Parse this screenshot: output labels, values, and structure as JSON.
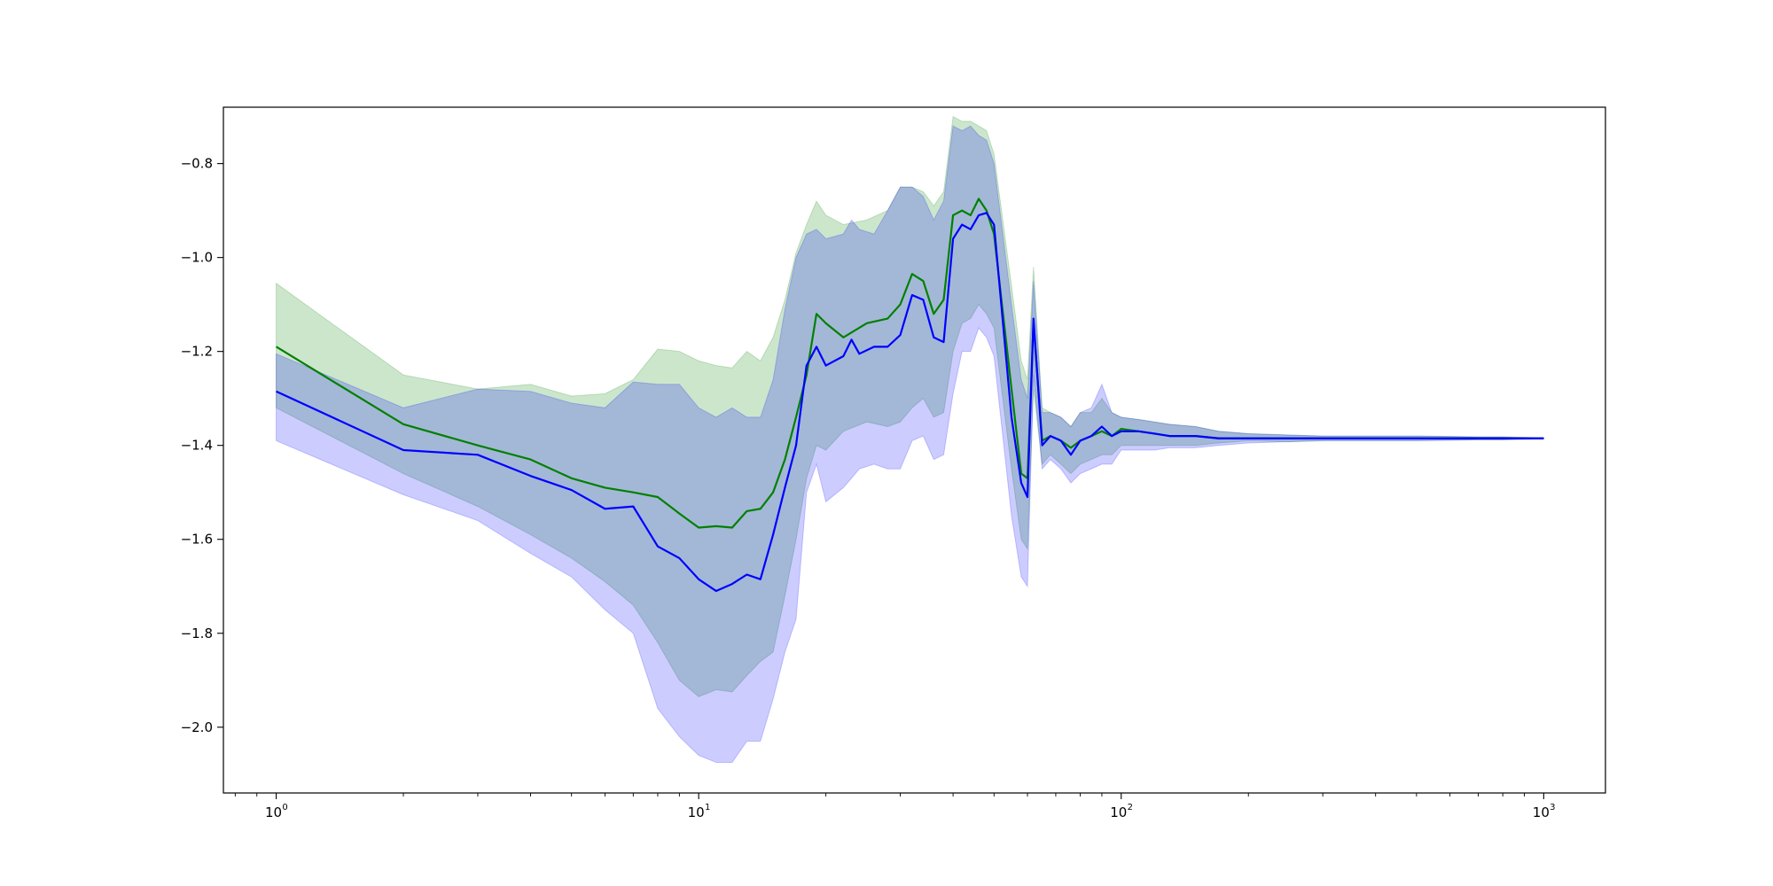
{
  "chart_data": {
    "type": "line",
    "title": "",
    "xlabel": "",
    "ylabel": "",
    "x_scale": "log",
    "xlim": [
      0.75,
      1400
    ],
    "ylim": [
      -2.14,
      -0.68
    ],
    "grid": false,
    "x_ticks": [
      {
        "base": "10",
        "exp": "0",
        "value": 1
      },
      {
        "base": "10",
        "exp": "1",
        "value": 10
      },
      {
        "base": "10",
        "exp": "2",
        "value": 100
      },
      {
        "base": "10",
        "exp": "3",
        "value": 1000
      }
    ],
    "y_ticks": [
      {
        "label": "−2.0",
        "value": -2.0
      },
      {
        "label": "−1.8",
        "value": -1.8
      },
      {
        "label": "−1.6",
        "value": -1.6
      },
      {
        "label": "−1.4",
        "value": -1.4
      },
      {
        "label": "−1.2",
        "value": -1.2
      },
      {
        "label": "−1.0",
        "value": -1.0
      },
      {
        "label": "−0.8",
        "value": -0.8
      }
    ],
    "series": [
      {
        "color": "#008000",
        "band_color": "#008000",
        "band_opacity": 0.2,
        "x": [
          1,
          2,
          3,
          4,
          5,
          6,
          7,
          8,
          9,
          10,
          11,
          12,
          13,
          14,
          15,
          16,
          17,
          18,
          19,
          20,
          22,
          25,
          28,
          30,
          32,
          34,
          36,
          38,
          40,
          42,
          44,
          46,
          48,
          50,
          55,
          58,
          60,
          62,
          65,
          68,
          72,
          76,
          80,
          85,
          90,
          95,
          100,
          110,
          120,
          130,
          150,
          170,
          200,
          250,
          300,
          400,
          500,
          600,
          700,
          800,
          900,
          1000
        ],
        "y": [
          -1.19,
          -1.355,
          -1.4,
          -1.43,
          -1.47,
          -1.49,
          -1.5,
          -1.51,
          -1.545,
          -1.575,
          -1.572,
          -1.575,
          -1.54,
          -1.535,
          -1.5,
          -1.43,
          -1.34,
          -1.25,
          -1.12,
          -1.14,
          -1.17,
          -1.14,
          -1.13,
          -1.1,
          -1.035,
          -1.05,
          -1.12,
          -1.09,
          -0.91,
          -0.9,
          -0.91,
          -0.875,
          -0.9,
          -0.95,
          -1.28,
          -1.46,
          -1.47,
          -1.14,
          -1.39,
          -1.38,
          -1.39,
          -1.405,
          -1.39,
          -1.38,
          -1.37,
          -1.38,
          -1.365,
          -1.37,
          -1.375,
          -1.38,
          -1.38,
          -1.385,
          -1.385,
          -1.385,
          -1.385,
          -1.385,
          -1.385,
          -1.385,
          -1.385,
          -1.385,
          -1.385,
          -1.385
        ],
        "upper": [
          -1.055,
          -1.25,
          -1.28,
          -1.27,
          -1.295,
          -1.29,
          -1.26,
          -1.195,
          -1.2,
          -1.22,
          -1.23,
          -1.235,
          -1.2,
          -1.22,
          -1.17,
          -1.09,
          -0.99,
          -0.93,
          -0.88,
          -0.91,
          -0.93,
          -0.92,
          -0.9,
          -0.85,
          -0.85,
          -0.86,
          -0.89,
          -0.86,
          -0.7,
          -0.71,
          -0.71,
          -0.72,
          -0.73,
          -0.78,
          -1.06,
          -1.22,
          -1.26,
          -1.02,
          -1.32,
          -1.33,
          -1.34,
          -1.36,
          -1.33,
          -1.33,
          -1.3,
          -1.33,
          -1.34,
          -1.345,
          -1.35,
          -1.355,
          -1.36,
          -1.37,
          -1.375,
          -1.378,
          -1.38,
          -1.38,
          -1.38,
          -1.381,
          -1.382,
          -1.382,
          -1.383,
          -1.384
        ],
        "lower": [
          -1.32,
          -1.46,
          -1.53,
          -1.59,
          -1.64,
          -1.69,
          -1.74,
          -1.82,
          -1.9,
          -1.935,
          -1.92,
          -1.925,
          -1.89,
          -1.86,
          -1.84,
          -1.72,
          -1.6,
          -1.47,
          -1.4,
          -1.41,
          -1.37,
          -1.35,
          -1.36,
          -1.35,
          -1.32,
          -1.3,
          -1.34,
          -1.33,
          -1.2,
          -1.14,
          -1.13,
          -1.1,
          -1.12,
          -1.15,
          -1.45,
          -1.6,
          -1.62,
          -1.28,
          -1.44,
          -1.42,
          -1.44,
          -1.46,
          -1.44,
          -1.43,
          -1.42,
          -1.42,
          -1.4,
          -1.4,
          -1.4,
          -1.4,
          -1.4,
          -1.395,
          -1.39,
          -1.392,
          -1.39,
          -1.39,
          -1.39,
          -1.389,
          -1.388,
          -1.388,
          -1.387,
          -1.386
        ]
      },
      {
        "color": "#0000ff",
        "band_color": "#0000ff",
        "band_opacity": 0.2,
        "x": [
          1,
          2,
          3,
          4,
          5,
          6,
          7,
          8,
          9,
          10,
          11,
          12,
          13,
          14,
          15,
          16,
          17,
          18,
          19,
          20,
          22,
          23,
          24,
          26,
          28,
          30,
          32,
          34,
          36,
          38,
          40,
          42,
          44,
          46,
          48,
          50,
          55,
          58,
          60,
          62,
          65,
          68,
          72,
          76,
          80,
          85,
          90,
          95,
          100,
          110,
          120,
          130,
          150,
          170,
          200,
          250,
          300,
          400,
          500,
          600,
          700,
          800,
          900,
          1000
        ],
        "y": [
          -1.285,
          -1.41,
          -1.42,
          -1.465,
          -1.495,
          -1.535,
          -1.53,
          -1.615,
          -1.64,
          -1.685,
          -1.71,
          -1.695,
          -1.675,
          -1.685,
          -1.59,
          -1.49,
          -1.4,
          -1.23,
          -1.19,
          -1.23,
          -1.21,
          -1.175,
          -1.205,
          -1.19,
          -1.19,
          -1.165,
          -1.08,
          -1.09,
          -1.17,
          -1.18,
          -0.96,
          -0.93,
          -0.94,
          -0.91,
          -0.905,
          -0.93,
          -1.34,
          -1.48,
          -1.51,
          -1.13,
          -1.4,
          -1.38,
          -1.39,
          -1.42,
          -1.39,
          -1.38,
          -1.36,
          -1.38,
          -1.37,
          -1.37,
          -1.375,
          -1.38,
          -1.38,
          -1.385,
          -1.385,
          -1.385,
          -1.385,
          -1.385,
          -1.385,
          -1.385,
          -1.385,
          -1.385,
          -1.385,
          -1.385
        ],
        "upper": [
          -1.205,
          -1.32,
          -1.28,
          -1.285,
          -1.31,
          -1.32,
          -1.265,
          -1.27,
          -1.27,
          -1.32,
          -1.34,
          -1.32,
          -1.34,
          -1.34,
          -1.26,
          -1.11,
          -1.0,
          -0.95,
          -0.94,
          -0.96,
          -0.95,
          -0.92,
          -0.94,
          -0.95,
          -0.9,
          -0.85,
          -0.85,
          -0.87,
          -0.92,
          -0.88,
          -0.72,
          -0.73,
          -0.72,
          -0.74,
          -0.75,
          -0.8,
          -1.1,
          -1.26,
          -1.3,
          -1.05,
          -1.33,
          -1.33,
          -1.34,
          -1.36,
          -1.33,
          -1.32,
          -1.27,
          -1.33,
          -1.34,
          -1.345,
          -1.35,
          -1.355,
          -1.36,
          -1.37,
          -1.375,
          -1.378,
          -1.38,
          -1.38,
          -1.38,
          -1.381,
          -1.382,
          -1.382,
          -1.383,
          -1.384
        ],
        "lower": [
          -1.39,
          -1.505,
          -1.56,
          -1.63,
          -1.68,
          -1.75,
          -1.8,
          -1.96,
          -2.02,
          -2.06,
          -2.075,
          -2.075,
          -2.03,
          -2.03,
          -1.94,
          -1.84,
          -1.77,
          -1.5,
          -1.44,
          -1.52,
          -1.49,
          -1.47,
          -1.45,
          -1.44,
          -1.45,
          -1.45,
          -1.39,
          -1.38,
          -1.43,
          -1.42,
          -1.29,
          -1.2,
          -1.2,
          -1.15,
          -1.17,
          -1.21,
          -1.55,
          -1.68,
          -1.7,
          -1.25,
          -1.45,
          -1.43,
          -1.45,
          -1.48,
          -1.46,
          -1.45,
          -1.44,
          -1.44,
          -1.41,
          -1.41,
          -1.41,
          -1.405,
          -1.405,
          -1.4,
          -1.395,
          -1.392,
          -1.39,
          -1.39,
          -1.39,
          -1.389,
          -1.388,
          -1.388,
          -1.387,
          -1.386
        ]
      }
    ]
  }
}
